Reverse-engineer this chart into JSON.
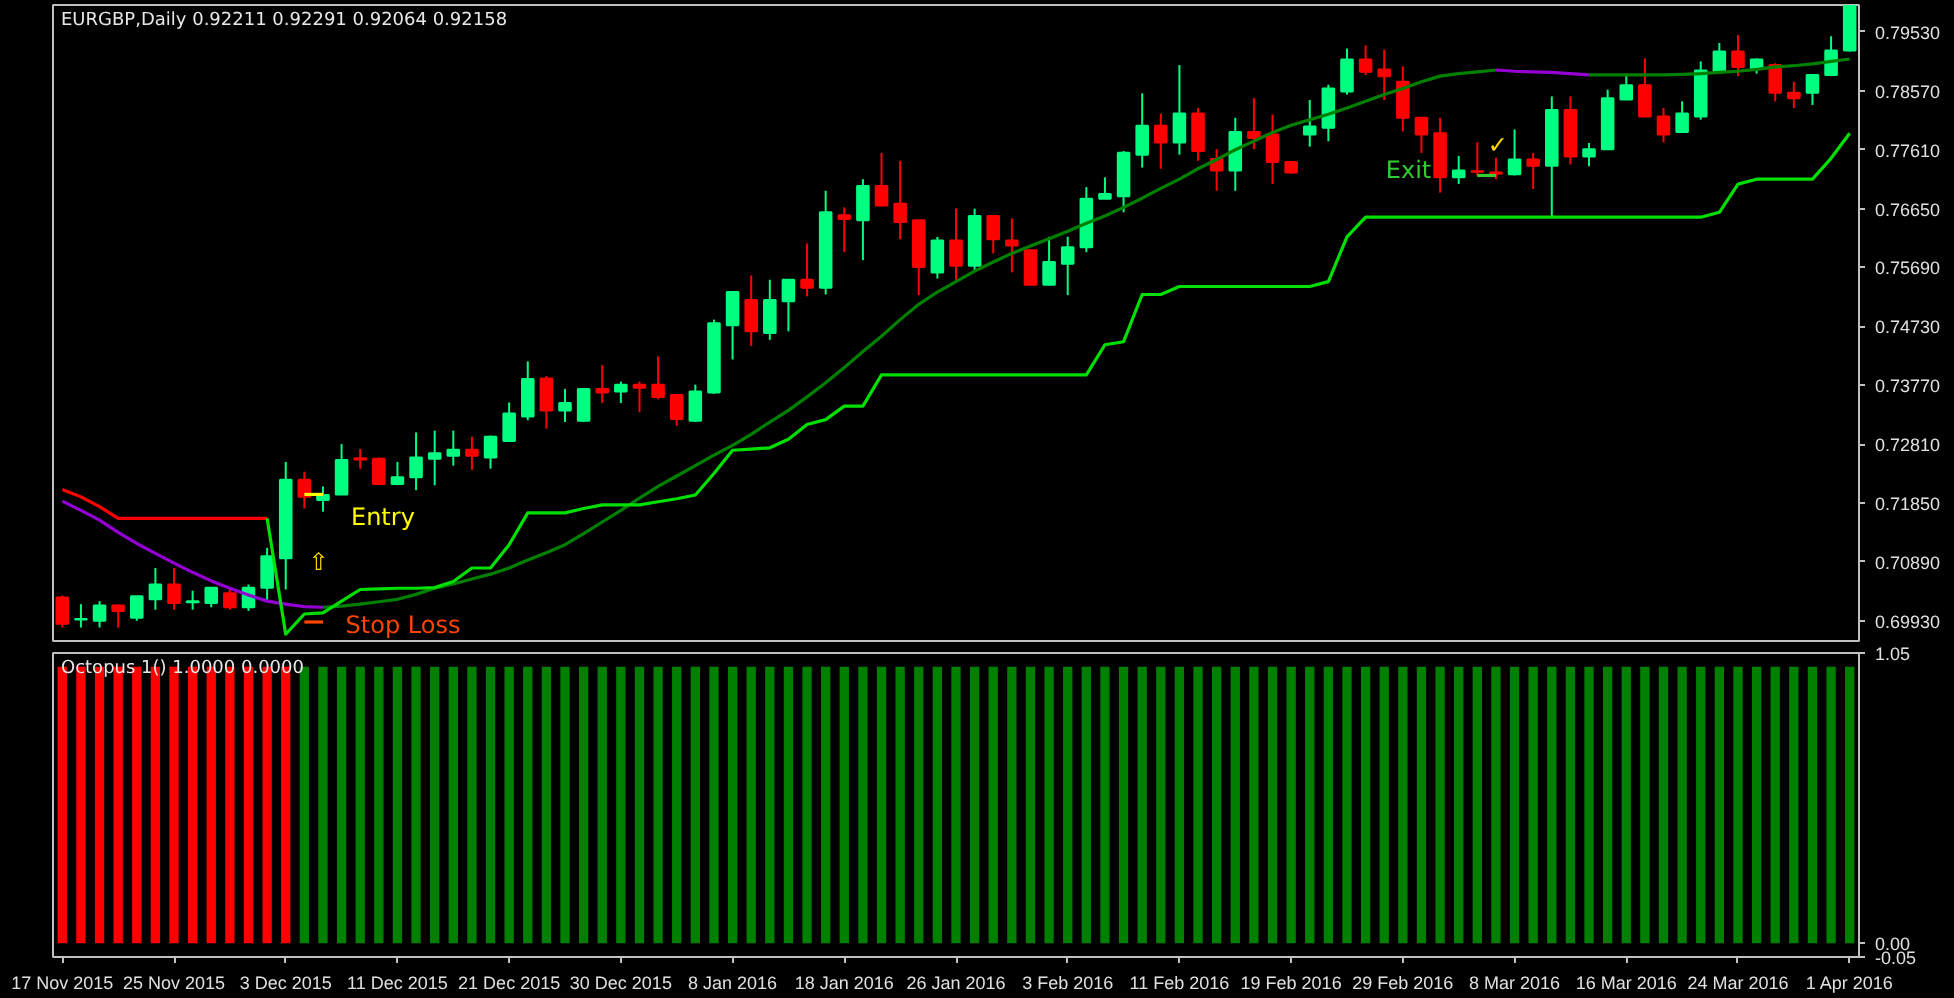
{
  "chart_data": [
    {
      "type": "candlestick",
      "title": "EURGBP,Daily  0.92211 0.92291 0.92064 0.92158",
      "tick_labels": "y",
      "ylim": [
        0.696,
        0.7997
      ],
      "yticks": [
        {
          "value": 0.7953,
          "label": "0.79530"
        },
        {
          "value": 0.7857,
          "label": "0.78570"
        },
        {
          "value": 0.7761,
          "label": "0.77610"
        },
        {
          "value": 0.7665,
          "label": "0.76650"
        },
        {
          "value": 0.7569,
          "label": "0.75690"
        },
        {
          "value": 0.7473,
          "label": "0.74730"
        },
        {
          "value": 0.7377,
          "label": "0.73770"
        },
        {
          "value": 0.7281,
          "label": "0.72810"
        },
        {
          "value": 0.7185,
          "label": "0.71850"
        },
        {
          "value": 0.7089,
          "label": "0.70890"
        },
        {
          "value": 0.6993,
          "label": "0.69930"
        }
      ],
      "ohlc": [
        [
          0.7031,
          0.7034,
          0.6982,
          0.6988
        ],
        [
          0.6995,
          0.702,
          0.6982,
          0.6996
        ],
        [
          0.6993,
          0.7025,
          0.6982,
          0.7018
        ],
        [
          0.7018,
          0.702,
          0.6982,
          0.7009
        ],
        [
          0.6998,
          0.7033,
          0.6993,
          0.7033
        ],
        [
          0.7028,
          0.7079,
          0.7011,
          0.7052
        ],
        [
          0.7052,
          0.7079,
          0.7011,
          0.7022
        ],
        [
          0.7023,
          0.7042,
          0.7011,
          0.7025
        ],
        [
          0.7022,
          0.7047,
          0.7015,
          0.7047
        ],
        [
          0.7038,
          0.7047,
          0.7011,
          0.7015
        ],
        [
          0.7015,
          0.7052,
          0.7009,
          0.7047
        ],
        [
          0.7047,
          0.7112,
          0.7024,
          0.7098
        ],
        [
          0.7095,
          0.7252,
          0.7044,
          0.7223
        ],
        [
          0.7223,
          0.7236,
          0.7176,
          0.7195
        ],
        [
          0.719,
          0.7212,
          0.7171,
          0.7198
        ],
        [
          0.7199,
          0.7281,
          0.7199,
          0.7255
        ],
        [
          0.7258,
          0.7273,
          0.7241,
          0.7256
        ],
        [
          0.7257,
          0.7259,
          0.7214,
          0.7216
        ],
        [
          0.7216,
          0.7252,
          0.7214,
          0.7227
        ],
        [
          0.7227,
          0.73,
          0.7206,
          0.7259
        ],
        [
          0.7257,
          0.7303,
          0.7214,
          0.7266
        ],
        [
          0.7262,
          0.7303,
          0.7246,
          0.7272
        ],
        [
          0.7272,
          0.7293,
          0.7239,
          0.7262
        ],
        [
          0.7259,
          0.7295,
          0.7241,
          0.7293
        ],
        [
          0.7286,
          0.7349,
          0.7286,
          0.7331
        ],
        [
          0.7326,
          0.7416,
          0.732,
          0.7387
        ],
        [
          0.7388,
          0.7392,
          0.7306,
          0.7336
        ],
        [
          0.7336,
          0.7371,
          0.7317,
          0.7348
        ],
        [
          0.7319,
          0.7371,
          0.7317,
          0.7371
        ],
        [
          0.7371,
          0.741,
          0.7348,
          0.7365
        ],
        [
          0.7367,
          0.7383,
          0.7348,
          0.7378
        ],
        [
          0.7378,
          0.7383,
          0.7333,
          0.7373
        ],
        [
          0.7378,
          0.7424,
          0.7354,
          0.7358
        ],
        [
          0.7361,
          0.7363,
          0.7311,
          0.7322
        ],
        [
          0.7319,
          0.7378,
          0.7317,
          0.7367
        ],
        [
          0.7365,
          0.7484,
          0.7363,
          0.7478
        ],
        [
          0.7475,
          0.7529,
          0.7419,
          0.7529
        ],
        [
          0.7516,
          0.7556,
          0.7441,
          0.7465
        ],
        [
          0.7462,
          0.7549,
          0.7451,
          0.7516
        ],
        [
          0.7514,
          0.7549,
          0.7465,
          0.7549
        ],
        [
          0.7549,
          0.7608,
          0.7522,
          0.7536
        ],
        [
          0.7536,
          0.7694,
          0.7525,
          0.7659
        ],
        [
          0.7654,
          0.7667,
          0.7594,
          0.7648
        ],
        [
          0.7646,
          0.7713,
          0.7581,
          0.7702
        ],
        [
          0.7702,
          0.7756,
          0.7669,
          0.767
        ],
        [
          0.7673,
          0.7743,
          0.7615,
          0.7643
        ],
        [
          0.7646,
          0.7646,
          0.7524,
          0.757
        ],
        [
          0.7561,
          0.7619,
          0.7551,
          0.7613
        ],
        [
          0.7613,
          0.7665,
          0.7549,
          0.7572
        ],
        [
          0.7572,
          0.7665,
          0.7565,
          0.7653
        ],
        [
          0.7653,
          0.7653,
          0.7592,
          0.7615
        ],
        [
          0.7613,
          0.7649,
          0.7561,
          0.7605
        ],
        [
          0.7597,
          0.7597,
          0.754,
          0.7541
        ],
        [
          0.7541,
          0.7619,
          0.754,
          0.7578
        ],
        [
          0.7575,
          0.7619,
          0.7524,
          0.7602
        ],
        [
          0.7602,
          0.77,
          0.7594,
          0.7681
        ],
        [
          0.7681,
          0.7716,
          0.7681,
          0.7689
        ],
        [
          0.7685,
          0.7759,
          0.7659,
          0.7756
        ],
        [
          0.7753,
          0.7853,
          0.7732,
          0.78
        ],
        [
          0.78,
          0.782,
          0.773,
          0.7773
        ],
        [
          0.7773,
          0.7899,
          0.7753,
          0.782
        ],
        [
          0.782,
          0.7829,
          0.7743,
          0.7759
        ],
        [
          0.7746,
          0.7762,
          0.7694,
          0.7727
        ],
        [
          0.7727,
          0.7813,
          0.7694,
          0.779
        ],
        [
          0.779,
          0.7845,
          0.7762,
          0.778
        ],
        [
          0.7786,
          0.7818,
          0.7705,
          0.7741
        ],
        [
          0.7741,
          0.7743,
          0.7722,
          0.7724
        ],
        [
          0.7786,
          0.7842,
          0.7766,
          0.7799
        ],
        [
          0.7797,
          0.7867,
          0.7775,
          0.7861
        ],
        [
          0.7856,
          0.7926,
          0.7851,
          0.7908
        ],
        [
          0.7908,
          0.7931,
          0.7883,
          0.7888
        ],
        [
          0.7892,
          0.7924,
          0.7842,
          0.7881
        ],
        [
          0.7872,
          0.7897,
          0.7791,
          0.7813
        ],
        [
          0.7813,
          0.7813,
          0.7756,
          0.7786
        ],
        [
          0.7788,
          0.7813,
          0.7691,
          0.7716
        ],
        [
          0.7716,
          0.7751,
          0.7705,
          0.7727
        ],
        [
          0.7726,
          0.7773,
          0.7719,
          0.7725
        ],
        [
          0.7724,
          0.7748,
          0.7713,
          0.7722
        ],
        [
          0.7721,
          0.7794,
          0.7719,
          0.7745
        ],
        [
          0.7745,
          0.7756,
          0.7697,
          0.7735
        ],
        [
          0.7735,
          0.7848,
          0.7651,
          0.7826
        ],
        [
          0.7826,
          0.7848,
          0.7737,
          0.775
        ],
        [
          0.775,
          0.7772,
          0.7734,
          0.7762
        ],
        [
          0.7762,
          0.7859,
          0.7762,
          0.7845
        ],
        [
          0.7843,
          0.7885,
          0.7843,
          0.7866
        ],
        [
          0.7866,
          0.791,
          0.7815,
          0.7815
        ],
        [
          0.7815,
          0.7829,
          0.7773,
          0.7786
        ],
        [
          0.779,
          0.784,
          0.779,
          0.782
        ],
        [
          0.7815,
          0.7905,
          0.781,
          0.789
        ],
        [
          0.7888,
          0.7935,
          0.7885,
          0.7921
        ],
        [
          0.7921,
          0.7948,
          0.7881,
          0.7896
        ],
        [
          0.7893,
          0.791,
          0.7885,
          0.7908
        ],
        [
          0.7899,
          0.7902,
          0.784,
          0.7854
        ],
        [
          0.7854,
          0.7872,
          0.7829,
          0.7845
        ],
        [
          0.7854,
          0.7883,
          0.7834,
          0.7883
        ],
        [
          0.7883,
          0.7946,
          0.7881,
          0.7923
        ],
        [
          0.7923,
          0.7996,
          0.7921,
          0.7996
        ]
      ],
      "colors": [
        "#ff0000",
        "#00ff80",
        "#00ff80",
        "#ff0000",
        "#00ff80",
        "#00ff80",
        "#ff0000",
        "#00ff80",
        "#00ff80",
        "#ff0000",
        "#00ff80",
        "#00ff80",
        "#00ff80",
        "#ff0000",
        "#00ff80",
        "#00ff80",
        "#ff0000",
        "#ff0000",
        "#00ff80",
        "#00ff80",
        "#00ff80",
        "#00ff80",
        "#ff0000",
        "#00ff80",
        "#00ff80",
        "#00ff80",
        "#ff0000",
        "#00ff80",
        "#00ff80",
        "#ff0000",
        "#00ff80",
        "#ff0000",
        "#ff0000",
        "#ff0000",
        "#00ff80",
        "#00ff80",
        "#00ff80",
        "#ff0000",
        "#00ff80",
        "#00ff80",
        "#ff0000",
        "#00ff80",
        "#ff0000",
        "#00ff80",
        "#ff0000",
        "#ff0000",
        "#ff0000",
        "#00ff80",
        "#ff0000",
        "#00ff80",
        "#ff0000",
        "#ff0000",
        "#ff0000",
        "#00ff80",
        "#00ff80",
        "#00ff80",
        "#00ff80",
        "#00ff80",
        "#00ff80",
        "#ff0000",
        "#00ff80",
        "#ff0000",
        "#ff0000",
        "#00ff80",
        "#ff0000",
        "#ff0000",
        "#ff0000",
        "#00ff80",
        "#00ff80",
        "#00ff80",
        "#ff0000",
        "#ff0000",
        "#ff0000",
        "#ff0000",
        "#ff0000",
        "#00ff80",
        "#ff0000",
        "#ff0000",
        "#00ff80",
        "#ff0000",
        "#00ff80",
        "#ff0000",
        "#00ff80",
        "#00ff80",
        "#00ff80",
        "#ff0000",
        "#ff0000",
        "#00ff80",
        "#00ff80",
        "#00ff80",
        "#ff0000",
        "#00ff80",
        "#ff0000",
        "#ff0000",
        "#00ff80",
        "#00ff80",
        "#00ff80"
      ],
      "series": [
        {
          "type": "line",
          "color": "#008000",
          "values": [
            null,
            null,
            null,
            null,
            null,
            null,
            null,
            null,
            null,
            null,
            null,
            null,
            null,
            null,
            0.7015,
            0.7017,
            0.702,
            0.7024,
            0.7028,
            0.7036,
            0.7046,
            0.7053,
            0.7061,
            0.7069,
            0.7079,
            0.7092,
            0.7104,
            0.7117,
            0.7135,
            0.7154,
            0.7173,
            0.7193,
            0.7212,
            0.7229,
            0.7246,
            0.7263,
            0.7279,
            0.7297,
            0.7317,
            0.7336,
            0.7358,
            0.7381,
            0.7406,
            0.7432,
            0.7457,
            0.7484,
            0.7509,
            0.7529,
            0.7546,
            0.7563,
            0.7578,
            0.7592,
            0.7604,
            0.7616,
            0.7628,
            0.7641,
            0.7653,
            0.7667,
            0.7682,
            0.7698,
            0.7713,
            0.773,
            0.7745,
            0.7761,
            0.7775,
            0.7789,
            0.7801,
            0.781,
            0.7819,
            0.7829,
            0.784,
            0.7851,
            0.7861,
            0.7872,
            0.7881,
            0.7885,
            0.7888,
            0.7891,
            null,
            null,
            null,
            null,
            0.7883,
            0.7883,
            0.7883,
            0.7883,
            0.7883,
            0.7884,
            0.7885,
            0.7887,
            0.7889,
            0.7892,
            0.7896,
            0.7898,
            0.7901,
            0.7905,
            0.7909
          ]
        },
        {
          "type": "line",
          "color": "#9400d3",
          "values": [
            0.7188,
            0.7173,
            0.7157,
            0.7137,
            0.7119,
            0.7103,
            0.7087,
            0.7072,
            0.7058,
            0.7046,
            0.7035,
            0.7025,
            0.702,
            0.7016,
            0.7015,
            null,
            null,
            null,
            null,
            null,
            null,
            null,
            null,
            null,
            null,
            null,
            null,
            null,
            null,
            null,
            null,
            null,
            null,
            null,
            null,
            null,
            null,
            null,
            null,
            null,
            null,
            null,
            null,
            null,
            null,
            null,
            null,
            null,
            null,
            null,
            null,
            null,
            null,
            null,
            null,
            null,
            null,
            null,
            null,
            null,
            null,
            null,
            null,
            null,
            null,
            null,
            null,
            null,
            null,
            null,
            null,
            null,
            null,
            null,
            null,
            null,
            null,
            0.7891,
            0.7889,
            0.7888,
            0.7887,
            0.7885,
            0.7883,
            null,
            null,
            null,
            null,
            null,
            null,
            null,
            null,
            null,
            null,
            null,
            null,
            null,
            null
          ]
        },
        {
          "type": "line",
          "color": "#ff0000",
          "values": [
            0.7207,
            0.7195,
            0.7179,
            0.716,
            0.716,
            0.716,
            0.716,
            0.716,
            0.716,
            0.716,
            0.716,
            0.716,
            null,
            null,
            null,
            null,
            null,
            null,
            null,
            null,
            null,
            null,
            null,
            null,
            null,
            null,
            null,
            null,
            null,
            null,
            null,
            null,
            null,
            null,
            null,
            null,
            null,
            null,
            null,
            null,
            null,
            null,
            null,
            null,
            null,
            null,
            null,
            null,
            null,
            null,
            null,
            null,
            null,
            null,
            null,
            null,
            null,
            null,
            null,
            null,
            null,
            null,
            null,
            null,
            null,
            null,
            null,
            null,
            null,
            null,
            null,
            null,
            null,
            null,
            null,
            null,
            null,
            null,
            null,
            null,
            null,
            null,
            null,
            null,
            null,
            null,
            null,
            null,
            null,
            null,
            null,
            null,
            null,
            null,
            null,
            null,
            null
          ]
        },
        {
          "type": "line",
          "color": "#00e000",
          "values": [
            null,
            null,
            null,
            null,
            null,
            null,
            null,
            null,
            null,
            null,
            null,
            0.716,
            0.6971,
            0.7004,
            0.7006,
            0.7025,
            0.7044,
            0.7045,
            0.7046,
            0.7046,
            0.7047,
            0.7057,
            0.7079,
            0.7079,
            0.7117,
            0.7169,
            0.7169,
            0.7169,
            0.7176,
            0.7182,
            0.7182,
            0.7182,
            0.7187,
            0.7192,
            0.7198,
            0.7233,
            0.7271,
            0.7273,
            0.7275,
            0.7289,
            0.7313,
            0.7321,
            0.7343,
            0.7343,
            0.7394,
            0.7394,
            0.7394,
            0.7394,
            0.7394,
            0.7394,
            0.7394,
            0.7394,
            0.7394,
            0.7394,
            0.7394,
            0.7394,
            0.7443,
            0.7448,
            0.7525,
            0.7525,
            0.7538,
            0.7538,
            0.7538,
            0.7538,
            0.7538,
            0.7538,
            0.7538,
            0.7538,
            0.7546,
            0.7619,
            0.7651,
            0.7651,
            0.7651,
            0.7651,
            0.7651,
            0.7651,
            0.7651,
            0.7651,
            0.7651,
            0.7651,
            0.7651,
            0.7651,
            0.7651,
            0.7651,
            0.7651,
            0.7651,
            0.7651,
            0.7651,
            0.7651,
            0.7659,
            0.7705,
            0.7713,
            0.7713,
            0.7713,
            0.7713,
            0.7747,
            0.7788
          ]
        },
        {
          "type": "line",
          "color": "#ffff00",
          "values": [
            null,
            null,
            null,
            null,
            null,
            null,
            null,
            null,
            null,
            null,
            null,
            null,
            null,
            0.7199,
            0.7199,
            null,
            null,
            null,
            null,
            null,
            null,
            null,
            null,
            null,
            null,
            null,
            null,
            null,
            null,
            null,
            null,
            null,
            null,
            null,
            null,
            null,
            null,
            null,
            null,
            null,
            null,
            null,
            null,
            null,
            null,
            null,
            null,
            null,
            null,
            null,
            null,
            null,
            null,
            null,
            null,
            null,
            null,
            null,
            null,
            null,
            null,
            null,
            null,
            null,
            null,
            null,
            null,
            null,
            null,
            null,
            null,
            null,
            null,
            null,
            null,
            null,
            null,
            null,
            null,
            null,
            null,
            null,
            null,
            null,
            null,
            null,
            null,
            null,
            null,
            null,
            null,
            null,
            null,
            null,
            null,
            null,
            null
          ]
        },
        {
          "type": "line",
          "color": "#ff4500",
          "values": [
            null,
            null,
            null,
            null,
            null,
            null,
            null,
            null,
            null,
            null,
            null,
            null,
            null,
            0.6991,
            0.6991,
            null,
            null,
            null,
            null,
            null,
            null,
            null,
            null,
            null,
            null,
            null,
            null,
            null,
            null,
            null,
            null,
            null,
            null,
            null,
            null,
            null,
            null,
            null,
            null,
            null,
            null,
            null,
            null,
            null,
            null,
            null,
            null,
            null,
            null,
            null,
            null,
            null,
            null,
            null,
            null,
            null,
            null,
            null,
            null,
            null,
            null,
            null,
            null,
            null,
            null,
            null,
            null,
            null,
            null,
            null,
            null,
            null,
            null,
            null,
            null,
            null,
            null,
            null,
            null,
            null,
            null,
            null,
            null,
            null,
            null,
            null,
            null,
            null,
            null,
            null,
            null,
            null,
            null,
            null,
            null,
            null,
            null
          ]
        },
        {
          "type": "line",
          "color": "#32cd32",
          "values": [
            null,
            null,
            null,
            null,
            null,
            null,
            null,
            null,
            null,
            null,
            null,
            null,
            null,
            null,
            null,
            null,
            null,
            null,
            null,
            null,
            null,
            null,
            null,
            null,
            null,
            null,
            null,
            null,
            null,
            null,
            null,
            null,
            null,
            null,
            null,
            null,
            null,
            null,
            null,
            null,
            null,
            null,
            null,
            null,
            null,
            null,
            null,
            null,
            null,
            null,
            null,
            null,
            null,
            null,
            null,
            null,
            null,
            null,
            null,
            null,
            null,
            null,
            null,
            null,
            null,
            null,
            null,
            null,
            null,
            null,
            null,
            null,
            null,
            null,
            null,
            null,
            0.7719,
            0.7719,
            null,
            null,
            null,
            null,
            null,
            null,
            null,
            null,
            null,
            null,
            null,
            null,
            null,
            null,
            null,
            null,
            null,
            null,
            null
          ]
        }
      ],
      "annotations": [
        "Entry",
        "Stop Loss",
        "Exit",
        "⇧",
        "✓"
      ]
    },
    {
      "type": "bar",
      "title": "Octopus 1() 1.0000 0.0000",
      "categories": [
        "17 Nov 2015",
        null,
        null,
        null,
        null,
        null,
        "25 Nov 2015",
        null,
        null,
        null,
        null,
        null,
        "3 Dec 2015",
        null,
        null,
        null,
        null,
        null,
        "11 Dec 2015",
        null,
        null,
        null,
        null,
        null,
        "21 Dec 2015",
        null,
        null,
        null,
        null,
        null,
        "30 Dec 2015",
        null,
        null,
        null,
        null,
        null,
        "8 Jan 2016",
        null,
        null,
        null,
        null,
        null,
        "18 Jan 2016",
        null,
        null,
        null,
        null,
        null,
        "26 Jan 2016",
        null,
        null,
        null,
        null,
        null,
        "3 Feb 2016",
        null,
        null,
        null,
        null,
        null,
        "11 Feb 2016",
        null,
        null,
        null,
        null,
        null,
        "19 Feb 2016",
        null,
        null,
        null,
        null,
        null,
        "29 Feb 2016",
        null,
        null,
        null,
        null,
        null,
        "8 Mar 2016",
        null,
        null,
        null,
        null,
        null,
        "16 Mar 2016",
        null,
        null,
        null,
        null,
        null,
        "24 Mar 2016",
        null,
        null,
        null,
        null,
        null,
        "1 Apr 2016"
      ],
      "ylim": [
        -0.05,
        1.05
      ],
      "yticks": [
        1.05,
        {
          "value": 0,
          "label": "0.00"
        },
        -0.05
      ],
      "values": [
        1,
        1,
        1,
        1,
        1,
        1,
        1,
        1,
        1,
        1,
        1,
        1,
        1,
        1,
        1,
        1,
        1,
        1,
        1,
        1,
        1,
        1,
        1,
        1,
        1,
        1,
        1,
        1,
        1,
        1,
        1,
        1,
        1,
        1,
        1,
        1,
        1,
        1,
        1,
        1,
        1,
        1,
        1,
        1,
        1,
        1,
        1,
        1,
        1,
        1,
        1,
        1,
        1,
        1,
        1,
        1,
        1,
        1,
        1,
        1,
        1,
        1,
        1,
        1,
        1,
        1,
        1,
        1,
        1,
        1,
        1,
        1,
        1,
        1,
        1,
        1,
        1,
        1,
        1,
        1,
        1,
        1,
        1,
        1,
        1,
        1,
        1,
        1,
        1,
        1,
        1,
        1,
        1,
        1,
        1,
        1,
        1
      ],
      "colors": [
        "#ff0000",
        "#ff0000",
        "#ff0000",
        "#ff0000",
        "#ff0000",
        "#ff0000",
        "#ff0000",
        "#ff0000",
        "#ff0000",
        "#ff0000",
        "#ff0000",
        "#ff0000",
        "#ff0000",
        "#008000",
        "#008000",
        "#008000",
        "#008000",
        "#008000",
        "#008000",
        "#008000",
        "#008000",
        "#008000",
        "#008000",
        "#008000",
        "#008000",
        "#008000",
        "#008000",
        "#008000",
        "#008000",
        "#008000",
        "#008000",
        "#008000",
        "#008000",
        "#008000",
        "#008000",
        "#008000",
        "#008000",
        "#008000",
        "#008000",
        "#008000",
        "#008000",
        "#008000",
        "#008000",
        "#008000",
        "#008000",
        "#008000",
        "#008000",
        "#008000",
        "#008000",
        "#008000",
        "#008000",
        "#008000",
        "#008000",
        "#008000",
        "#008000",
        "#008000",
        "#008000",
        "#008000",
        "#008000",
        "#008000",
        "#008000",
        "#008000",
        "#008000",
        "#008000",
        "#008000",
        "#008000",
        "#008000",
        "#008000",
        "#008000",
        "#008000",
        "#008000",
        "#008000",
        "#008000",
        "#008000",
        "#008000",
        "#008000",
        "#008000",
        "#008000",
        "#008000",
        "#008000",
        "#008000",
        "#008000",
        "#008000",
        "#008000",
        "#008000",
        "#008000",
        "#008000",
        "#008000",
        "#008000",
        "#008000",
        "#008000",
        "#008000",
        "#008000",
        "#008000",
        "#008000",
        "#008000",
        "#008000"
      ]
    }
  ]
}
